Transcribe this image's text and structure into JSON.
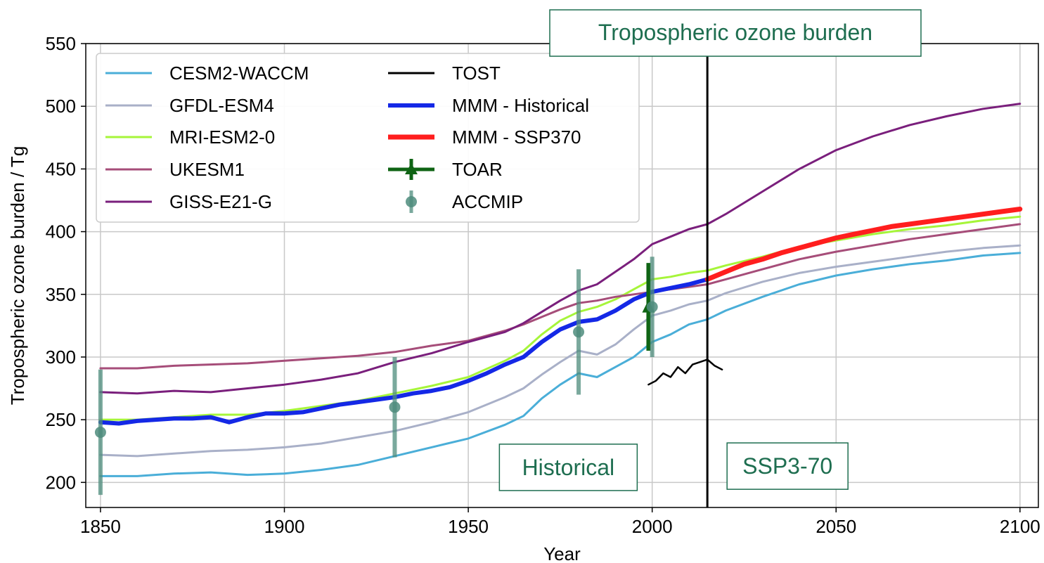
{
  "chart_data": {
    "type": "line",
    "title": "Tropospheric ozone burden",
    "xlabel": "Year",
    "ylabel": "Tropospheric ozone burden / Tg",
    "xlim": [
      1846,
      2105
    ],
    "ylim": [
      180,
      550
    ],
    "xticks": [
      1850,
      1900,
      1950,
      2000,
      2050,
      2100
    ],
    "yticks": [
      200,
      250,
      300,
      350,
      400,
      450,
      500,
      550
    ],
    "grid": true,
    "legend_position": "top-left",
    "divider_year": 2015,
    "annotations": [
      {
        "text": "Historical",
        "x": 1990,
        "y": 212
      },
      {
        "text": "SSP3-70",
        "x": 2041,
        "y": 213
      }
    ],
    "accent_color": "#1e6e50",
    "series": [
      {
        "name": "CESM2-WACCM",
        "color": "#4aaed8",
        "x": [
          1850,
          1860,
          1870,
          1880,
          1890,
          1900,
          1910,
          1920,
          1930,
          1940,
          1950,
          1960,
          1965,
          1970,
          1975,
          1980,
          1985,
          1990,
          1995,
          2000,
          2005,
          2010,
          2015,
          2020,
          2030,
          2040,
          2050,
          2060,
          2070,
          2080,
          2090,
          2100
        ],
        "y": [
          205,
          205,
          207,
          208,
          206,
          207,
          210,
          214,
          221,
          228,
          235,
          246,
          253,
          267,
          278,
          287,
          284,
          292,
          300,
          312,
          318,
          326,
          330,
          337,
          348,
          358,
          365,
          370,
          374,
          377,
          381,
          383
        ]
      },
      {
        "name": "GFDL-ESM4",
        "color": "#a9b0c8",
        "x": [
          1850,
          1860,
          1870,
          1880,
          1890,
          1900,
          1910,
          1920,
          1930,
          1940,
          1950,
          1960,
          1965,
          1970,
          1975,
          1980,
          1985,
          1990,
          1995,
          2000,
          2005,
          2010,
          2015,
          2020,
          2030,
          2040,
          2050,
          2060,
          2070,
          2080,
          2090,
          2100
        ],
        "y": [
          222,
          221,
          223,
          225,
          226,
          228,
          231,
          236,
          241,
          248,
          256,
          268,
          275,
          286,
          296,
          305,
          302,
          310,
          322,
          333,
          337,
          342,
          345,
          351,
          360,
          367,
          372,
          376,
          380,
          384,
          387,
          389
        ]
      },
      {
        "name": "MRI-ESM2-0",
        "color": "#a6f53a",
        "x": [
          1850,
          1860,
          1870,
          1880,
          1890,
          1900,
          1910,
          1920,
          1930,
          1940,
          1950,
          1960,
          1965,
          1970,
          1975,
          1980,
          1985,
          1990,
          1995,
          2000,
          2005,
          2010,
          2015,
          2020,
          2030,
          2040,
          2050,
          2060,
          2070,
          2080,
          2090,
          2100
        ],
        "y": [
          250,
          250,
          252,
          254,
          254,
          257,
          261,
          265,
          271,
          277,
          284,
          297,
          305,
          318,
          329,
          336,
          340,
          346,
          354,
          362,
          364,
          367,
          369,
          373,
          380,
          388,
          393,
          398,
          402,
          405,
          409,
          412
        ]
      },
      {
        "name": "UKESM1",
        "color": "#a64d79",
        "x": [
          1850,
          1860,
          1870,
          1880,
          1890,
          1900,
          1910,
          1920,
          1930,
          1940,
          1950,
          1960,
          1965,
          1970,
          1975,
          1980,
          1985,
          1990,
          1995,
          2000,
          2005,
          2010,
          2015,
          2020,
          2030,
          2040,
          2050,
          2060,
          2070,
          2080,
          2090,
          2100
        ],
        "y": [
          291,
          291,
          293,
          294,
          295,
          297,
          299,
          301,
          304,
          309,
          313,
          321,
          326,
          332,
          338,
          343,
          345,
          348,
          350,
          352,
          354,
          356,
          358,
          362,
          370,
          378,
          384,
          389,
          394,
          398,
          402,
          406
        ]
      },
      {
        "name": "GISS-E21-G",
        "color": "#7a1f7c",
        "x": [
          1850,
          1860,
          1870,
          1880,
          1890,
          1900,
          1910,
          1920,
          1930,
          1940,
          1950,
          1960,
          1965,
          1970,
          1975,
          1980,
          1985,
          1990,
          1995,
          2000,
          2005,
          2010,
          2015,
          2020,
          2030,
          2040,
          2050,
          2060,
          2070,
          2080,
          2090,
          2100
        ],
        "y": [
          272,
          271,
          273,
          272,
          275,
          278,
          282,
          287,
          296,
          303,
          312,
          320,
          327,
          336,
          345,
          353,
          358,
          368,
          378,
          390,
          396,
          402,
          406,
          414,
          432,
          450,
          465,
          476,
          485,
          492,
          498,
          502
        ]
      },
      {
        "name": "TOST",
        "color": "#000000",
        "x": [
          1999,
          2001,
          2003,
          2005,
          2007,
          2009,
          2011,
          2013,
          2015,
          2017,
          2019
        ],
        "y": [
          278,
          281,
          287,
          284,
          292,
          287,
          294,
          296,
          298,
          293,
          290
        ]
      },
      {
        "name": "MMM -  Historical",
        "color": "#1428e6",
        "x": [
          1850,
          1855,
          1860,
          1865,
          1870,
          1875,
          1880,
          1885,
          1890,
          1895,
          1900,
          1905,
          1910,
          1915,
          1920,
          1925,
          1930,
          1935,
          1940,
          1945,
          1950,
          1955,
          1960,
          1965,
          1970,
          1975,
          1980,
          1985,
          1990,
          1995,
          2000,
          2005,
          2010,
          2015
        ],
        "y": [
          248,
          247,
          249,
          250,
          251,
          251,
          252,
          248,
          252,
          255,
          255,
          256,
          259,
          262,
          264,
          266,
          268,
          271,
          273,
          276,
          281,
          287,
          294,
          300,
          312,
          322,
          328,
          330,
          337,
          346,
          352,
          355,
          358,
          362
        ]
      },
      {
        "name": "MMM -  SSP370",
        "color": "#ff1e1e",
        "x": [
          2015,
          2020,
          2025,
          2030,
          2035,
          2040,
          2045,
          2050,
          2055,
          2060,
          2065,
          2070,
          2075,
          2080,
          2085,
          2090,
          2095,
          2100
        ],
        "y": [
          362,
          368,
          374,
          378,
          383,
          387,
          391,
          395,
          398,
          401,
          404,
          406,
          408,
          410,
          412,
          414,
          416,
          418
        ]
      }
    ],
    "points": [
      {
        "name": "TOAR",
        "color": "#0f6414",
        "x": 1999,
        "y": 340,
        "ylow": 305,
        "yhigh": 375
      },
      {
        "name": "ACCMIP",
        "color": "#4e8c7c",
        "data": [
          {
            "x": 1850,
            "y": 240,
            "ylow": 190,
            "yhigh": 290
          },
          {
            "x": 1930,
            "y": 260,
            "ylow": 220,
            "yhigh": 300
          },
          {
            "x": 1980,
            "y": 320,
            "ylow": 270,
            "yhigh": 370
          },
          {
            "x": 2000,
            "y": 340,
            "ylow": 300,
            "yhigh": 380
          }
        ]
      }
    ],
    "legend": {
      "columns": [
        [
          "CESM2-WACCM",
          "GFDL-ESM4",
          "MRI-ESM2-0",
          "UKESM1",
          "GISS-E21-G"
        ],
        [
          "TOST",
          "MMM -  Historical",
          "MMM -  SSP370",
          "TOAR",
          "ACCMIP"
        ]
      ]
    }
  }
}
